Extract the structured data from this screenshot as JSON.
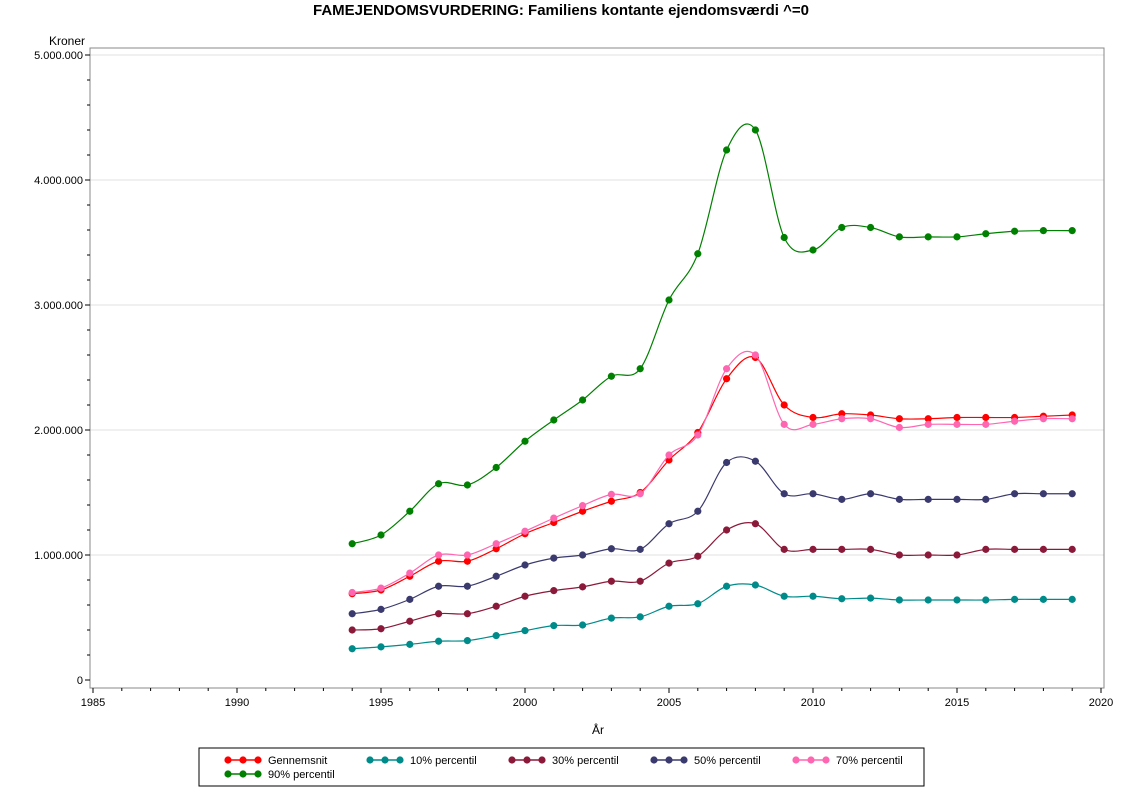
{
  "chart_data": {
    "type": "line",
    "title": "FAMEJENDOMSVURDERING: Familiens kontante ejendomsværdi ^=0",
    "xlabel": "År",
    "ylabel": "Kroner",
    "xlim": [
      1985,
      2020
    ],
    "ylim": [
      0,
      5000000
    ],
    "x_ticks": [
      1985,
      1990,
      1995,
      2000,
      2005,
      2010,
      2015,
      2020
    ],
    "y_ticks": [
      0,
      1000000,
      2000000,
      3000000,
      4000000,
      5000000
    ],
    "y_tick_labels": [
      "0",
      "1.000.000",
      "2.000.000",
      "3.000.000",
      "4.000.000",
      "5.000.000"
    ],
    "grid": "horizontal",
    "legend_position": "bottom",
    "x": [
      1994,
      1995,
      1996,
      1997,
      1998,
      1999,
      2000,
      2001,
      2002,
      2003,
      2004,
      2005,
      2006,
      2007,
      2008,
      2009,
      2010,
      2011,
      2012,
      2013,
      2014,
      2015,
      2016,
      2017,
      2018,
      2019
    ],
    "series": [
      {
        "name": "Gennemsnit",
        "color": "#ff0000",
        "values": [
          690000,
          720000,
          830000,
          950000,
          950000,
          1050000,
          1170000,
          1260000,
          1350000,
          1430000,
          1500000,
          1760000,
          1980000,
          2410000,
          2580000,
          2200000,
          2100000,
          2130000,
          2120000,
          2090000,
          2090000,
          2100000,
          2100000,
          2100000,
          2110000,
          2120000
        ]
      },
      {
        "name": "10% percentil",
        "color": "#008b8b",
        "values": [
          250000,
          265000,
          285000,
          310000,
          315000,
          355000,
          395000,
          435000,
          440000,
          495000,
          505000,
          590000,
          610000,
          750000,
          760000,
          670000,
          670000,
          650000,
          655000,
          640000,
          640000,
          640000,
          640000,
          645000,
          645000,
          645000
        ]
      },
      {
        "name": "30% percentil",
        "color": "#8b1a3a",
        "values": [
          400000,
          410000,
          470000,
          530000,
          530000,
          590000,
          670000,
          715000,
          745000,
          790000,
          790000,
          935000,
          990000,
          1200000,
          1250000,
          1045000,
          1045000,
          1045000,
          1045000,
          1000000,
          1000000,
          1000000,
          1045000,
          1045000,
          1045000,
          1045000
        ]
      },
      {
        "name": "50% percentil",
        "color": "#3b3a6e",
        "values": [
          530000,
          565000,
          645000,
          750000,
          750000,
          830000,
          920000,
          975000,
          1000000,
          1050000,
          1045000,
          1250000,
          1350000,
          1740000,
          1750000,
          1490000,
          1490000,
          1445000,
          1490000,
          1445000,
          1445000,
          1445000,
          1445000,
          1490000,
          1490000,
          1490000
        ]
      },
      {
        "name": "70% percentil",
        "color": "#ff66b2",
        "values": [
          700000,
          735000,
          855000,
          1000000,
          1000000,
          1090000,
          1190000,
          1295000,
          1395000,
          1485000,
          1490000,
          1800000,
          1960000,
          2490000,
          2600000,
          2045000,
          2045000,
          2090000,
          2090000,
          2020000,
          2045000,
          2045000,
          2045000,
          2070000,
          2090000,
          2090000
        ]
      },
      {
        "name": "90% percentil",
        "color": "#008000",
        "values": [
          1090000,
          1160000,
          1350000,
          1570000,
          1560000,
          1700000,
          1910000,
          2080000,
          2240000,
          2430000,
          2490000,
          3040000,
          3410000,
          4240000,
          4400000,
          3540000,
          3440000,
          3620000,
          3620000,
          3545000,
          3545000,
          3545000,
          3570000,
          3590000,
          3595000,
          3595000
        ]
      }
    ]
  }
}
